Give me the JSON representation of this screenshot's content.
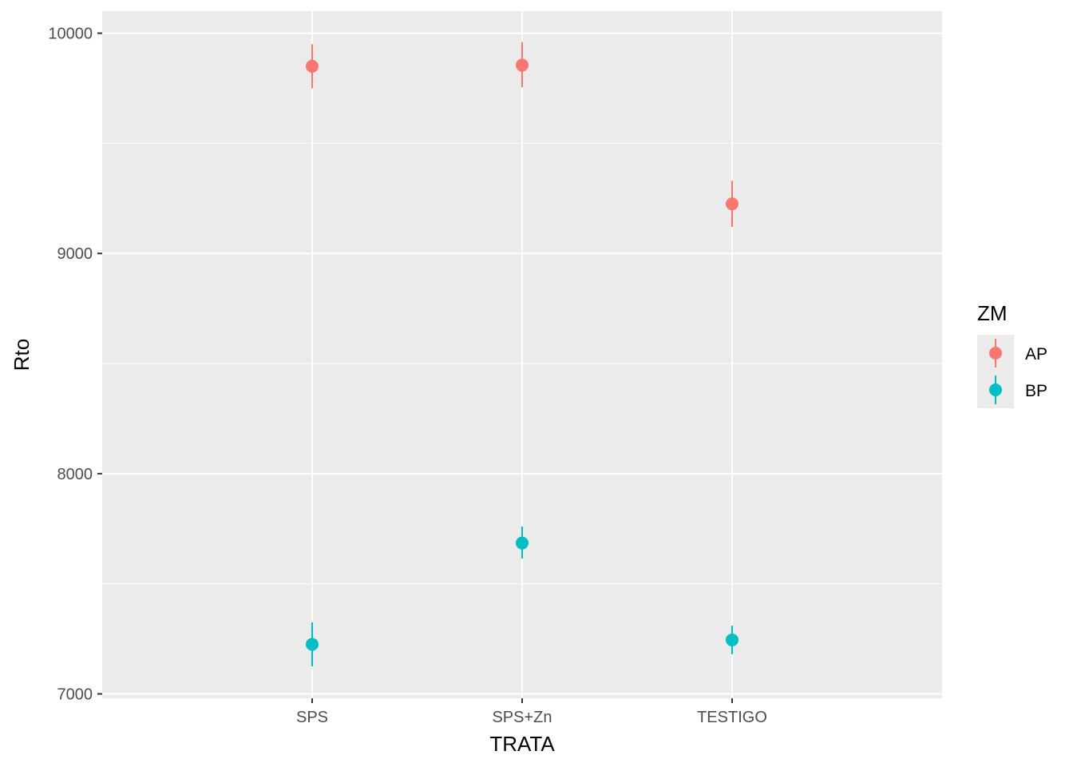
{
  "chart_data": {
    "type": "scatter",
    "xlabel": "TRATA",
    "ylabel": "Rto",
    "categories": [
      "SPS",
      "SPS+Zn",
      "TESTIGO"
    ],
    "ylim": [
      6980,
      10100
    ],
    "yticks": [
      7000,
      8000,
      9000,
      10000
    ],
    "ytick_labels": [
      "7000",
      "8000",
      "9000",
      "10000"
    ],
    "grid": true,
    "legend": {
      "title": "ZM",
      "position": "right"
    },
    "series": [
      {
        "name": "AP",
        "color": "#F8766D",
        "values": [
          9850,
          9855,
          9225
        ],
        "lower": [
          9750,
          9755,
          9120
        ],
        "upper": [
          9950,
          9960,
          9330
        ]
      },
      {
        "name": "BP",
        "color": "#00BFC4",
        "values": [
          7225,
          7685,
          7245
        ],
        "lower": [
          7125,
          7615,
          7180
        ],
        "upper": [
          7325,
          7760,
          7310
        ]
      }
    ]
  }
}
